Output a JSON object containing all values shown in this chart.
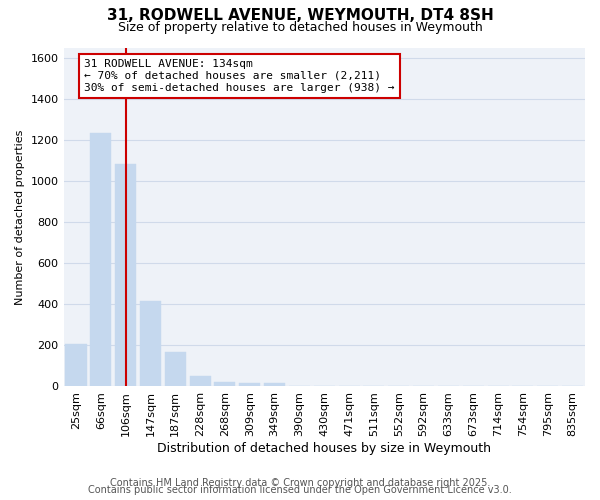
{
  "title": "31, RODWELL AVENUE, WEYMOUTH, DT4 8SH",
  "subtitle": "Size of property relative to detached houses in Weymouth",
  "xlabel": "Distribution of detached houses by size in Weymouth",
  "ylabel": "Number of detached properties",
  "categories": [
    "25sqm",
    "66sqm",
    "106sqm",
    "147sqm",
    "187sqm",
    "228sqm",
    "268sqm",
    "309sqm",
    "349sqm",
    "390sqm",
    "430sqm",
    "471sqm",
    "511sqm",
    "552sqm",
    "592sqm",
    "633sqm",
    "673sqm",
    "714sqm",
    "754sqm",
    "795sqm",
    "835sqm"
  ],
  "values": [
    205,
    1235,
    1085,
    415,
    170,
    52,
    22,
    18,
    18,
    0,
    0,
    0,
    0,
    0,
    0,
    0,
    0,
    0,
    0,
    0,
    0
  ],
  "bar_color": "#c5d8ee",
  "bar_edge_color": "#c5d8ee",
  "vline_x": 2.0,
  "vline_color": "#cc0000",
  "annotation_box_text": "31 RODWELL AVENUE: 134sqm\n← 70% of detached houses are smaller (2,211)\n30% of semi-detached houses are larger (938) →",
  "annotation_box_color": "#cc0000",
  "annotation_box_facecolor": "white",
  "ylim": [
    0,
    1650
  ],
  "yticks": [
    0,
    200,
    400,
    600,
    800,
    1000,
    1200,
    1400,
    1600
  ],
  "footer_line1": "Contains HM Land Registry data © Crown copyright and database right 2025.",
  "footer_line2": "Contains public sector information licensed under the Open Government Licence v3.0.",
  "plot_bg_color": "#eef2f8",
  "grid_color": "#d0daea",
  "title_fontsize": 11,
  "subtitle_fontsize": 9,
  "xlabel_fontsize": 9,
  "ylabel_fontsize": 8,
  "tick_fontsize": 8,
  "footer_fontsize": 7,
  "annotation_fontsize": 8
}
